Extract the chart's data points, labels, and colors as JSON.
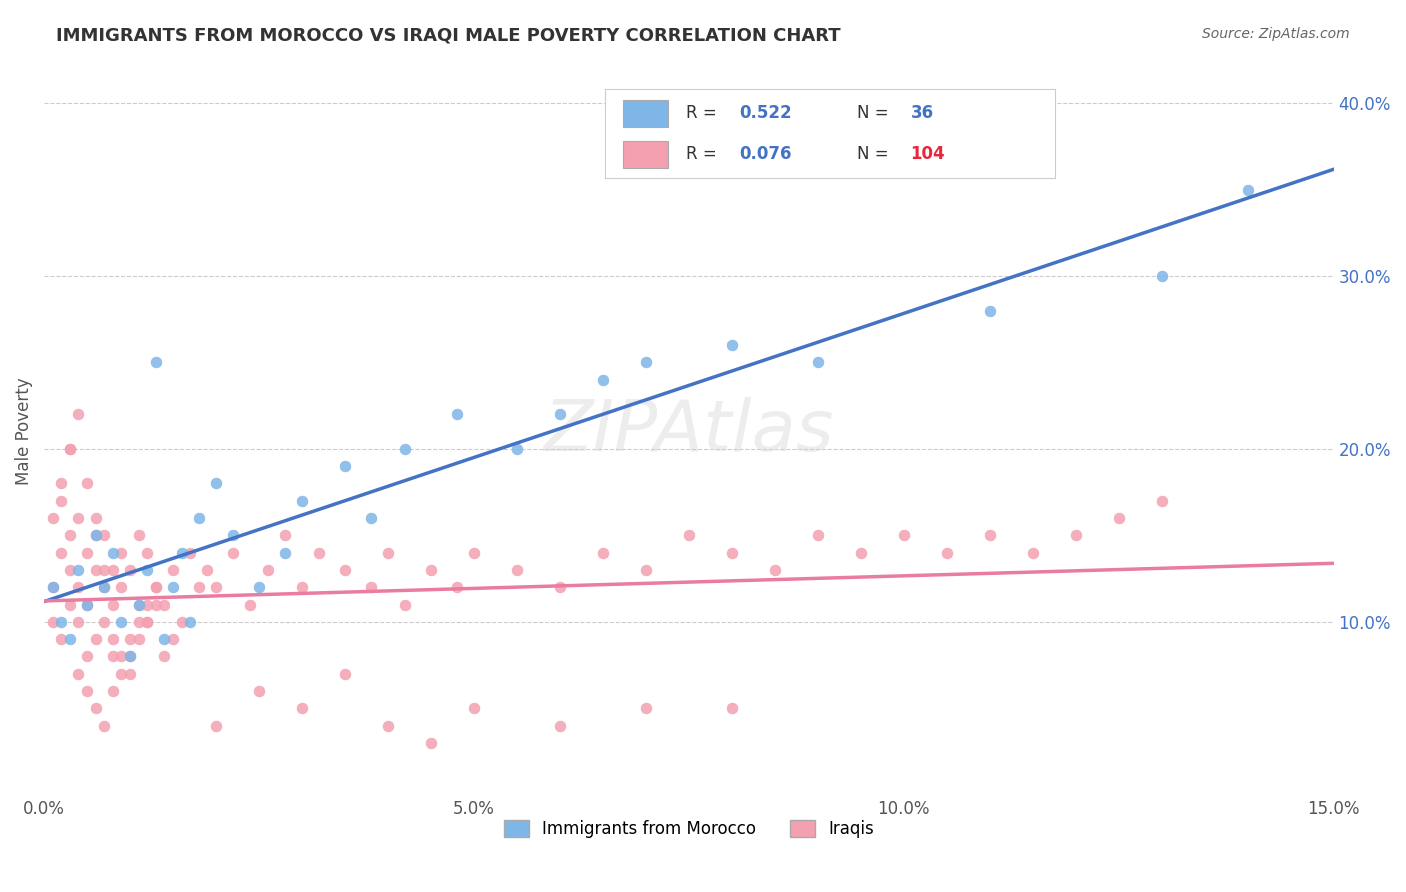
{
  "title": "IMMIGRANTS FROM MOROCCO VS IRAQI MALE POVERTY CORRELATION CHART",
  "source": "Source: ZipAtlas.com",
  "xlabel_bottom": "",
  "ylabel": "Male Poverty",
  "x_min": 0.0,
  "x_max": 0.15,
  "y_min": 0.0,
  "y_max": 0.42,
  "x_tick_labels": [
    "0.0%",
    "5.0%",
    "10.0%",
    "15.0%"
  ],
  "x_tick_values": [
    0.0,
    0.05,
    0.1,
    0.15
  ],
  "y_tick_labels": [
    "10.0%",
    "20.0%",
    "30.0%",
    "40.0%"
  ],
  "y_tick_values": [
    0.1,
    0.2,
    0.3,
    0.4
  ],
  "watermark": "ZIPAtlas",
  "legend_r1": "R = 0.522",
  "legend_n1": "N =  36",
  "legend_r2": "R = 0.076",
  "legend_n2": "N = 104",
  "color_morocco": "#7EB6E8",
  "color_iraq": "#F4A0B0",
  "color_line_morocco": "#4472C4",
  "color_line_iraq": "#E97CA0",
  "morocco_scatter_x": [
    0.001,
    0.002,
    0.003,
    0.004,
    0.005,
    0.006,
    0.007,
    0.008,
    0.009,
    0.01,
    0.011,
    0.012,
    0.013,
    0.014,
    0.015,
    0.016,
    0.017,
    0.018,
    0.02,
    0.022,
    0.025,
    0.028,
    0.03,
    0.035,
    0.038,
    0.042,
    0.048,
    0.055,
    0.06,
    0.065,
    0.07,
    0.08,
    0.09,
    0.11,
    0.13,
    0.14
  ],
  "morocco_scatter_y": [
    0.12,
    0.1,
    0.09,
    0.13,
    0.11,
    0.15,
    0.12,
    0.14,
    0.1,
    0.08,
    0.11,
    0.13,
    0.25,
    0.09,
    0.12,
    0.14,
    0.1,
    0.16,
    0.18,
    0.15,
    0.12,
    0.14,
    0.17,
    0.19,
    0.16,
    0.2,
    0.22,
    0.2,
    0.22,
    0.24,
    0.25,
    0.26,
    0.25,
    0.28,
    0.3,
    0.35
  ],
  "iraq_scatter_x": [
    0.001,
    0.001,
    0.002,
    0.002,
    0.003,
    0.003,
    0.003,
    0.004,
    0.004,
    0.004,
    0.005,
    0.005,
    0.005,
    0.006,
    0.006,
    0.006,
    0.007,
    0.007,
    0.007,
    0.008,
    0.008,
    0.008,
    0.009,
    0.009,
    0.01,
    0.01,
    0.011,
    0.011,
    0.012,
    0.012,
    0.013,
    0.014,
    0.015,
    0.016,
    0.017,
    0.018,
    0.019,
    0.02,
    0.022,
    0.024,
    0.026,
    0.028,
    0.03,
    0.032,
    0.035,
    0.038,
    0.04,
    0.042,
    0.045,
    0.048,
    0.05,
    0.055,
    0.06,
    0.065,
    0.07,
    0.075,
    0.08,
    0.085,
    0.09,
    0.095,
    0.1,
    0.105,
    0.11,
    0.115,
    0.12,
    0.125,
    0.13,
    0.002,
    0.003,
    0.004,
    0.005,
    0.006,
    0.007,
    0.008,
    0.009,
    0.01,
    0.011,
    0.012,
    0.013,
    0.014,
    0.015,
    0.001,
    0.002,
    0.003,
    0.004,
    0.005,
    0.006,
    0.007,
    0.008,
    0.009,
    0.01,
    0.011,
    0.012,
    0.013,
    0.02,
    0.025,
    0.03,
    0.035,
    0.04,
    0.045,
    0.05,
    0.06,
    0.07,
    0.08
  ],
  "iraq_scatter_y": [
    0.12,
    0.1,
    0.14,
    0.09,
    0.11,
    0.13,
    0.15,
    0.1,
    0.12,
    0.16,
    0.08,
    0.11,
    0.14,
    0.09,
    0.13,
    0.16,
    0.1,
    0.12,
    0.15,
    0.11,
    0.13,
    0.08,
    0.12,
    0.14,
    0.09,
    0.13,
    0.11,
    0.15,
    0.1,
    0.14,
    0.12,
    0.11,
    0.13,
    0.1,
    0.14,
    0.12,
    0.13,
    0.12,
    0.14,
    0.11,
    0.13,
    0.15,
    0.12,
    0.14,
    0.13,
    0.12,
    0.14,
    0.11,
    0.13,
    0.12,
    0.14,
    0.13,
    0.12,
    0.14,
    0.13,
    0.15,
    0.14,
    0.13,
    0.15,
    0.14,
    0.15,
    0.14,
    0.15,
    0.14,
    0.15,
    0.16,
    0.17,
    0.17,
    0.2,
    0.22,
    0.18,
    0.15,
    0.13,
    0.09,
    0.08,
    0.07,
    0.1,
    0.11,
    0.12,
    0.08,
    0.09,
    0.16,
    0.18,
    0.2,
    0.07,
    0.06,
    0.05,
    0.04,
    0.06,
    0.07,
    0.08,
    0.09,
    0.1,
    0.11,
    0.04,
    0.06,
    0.05,
    0.07,
    0.04,
    0.03,
    0.05,
    0.04,
    0.05,
    0.05
  ]
}
